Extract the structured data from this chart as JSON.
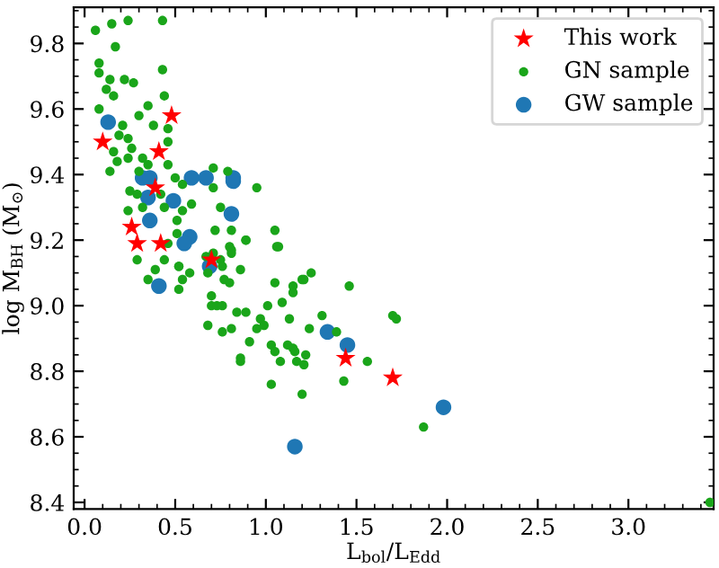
{
  "chart_data": {
    "type": "scatter",
    "xlabel": "L$_{bol}$/L$_{Edd}$",
    "ylabel": "log M$_{BH}$ (M$_{⊙}$)",
    "xlim": [
      -0.06,
      3.47
    ],
    "ylim": [
      8.38,
      9.91
    ],
    "xticks": [
      {
        "value": 0,
        "label": "0.0"
      },
      0.5,
      {
        "value": 1,
        "label": "1.0"
      },
      1.5,
      {
        "value": 2,
        "label": "2.0"
      },
      2.5,
      {
        "value": 3,
        "label": "3.0"
      }
    ],
    "yticks": [
      8.4,
      8.6,
      8.8,
      {
        "value": 9,
        "label": "9.0"
      },
      9.2,
      9.4,
      9.6,
      9.8
    ],
    "grid": false,
    "legend": "top right",
    "series": [
      {
        "name": "This work",
        "color": "#ff0000",
        "marker": "star",
        "x": [
          0.48,
          0.1,
          0.41,
          0.39,
          0.26,
          0.29,
          0.42,
          0.7,
          1.44,
          1.7
        ],
        "values": [
          9.58,
          9.5,
          9.47,
          9.36,
          9.24,
          9.19,
          9.19,
          9.14,
          8.84,
          8.78
        ]
      },
      {
        "name": "GN sample",
        "color": "#1aa51a",
        "marker": "circle",
        "x": [
          0.06,
          0.15,
          0.24,
          0.43,
          0.17,
          0.08,
          0.08,
          0.14,
          0.22,
          0.27,
          0.43,
          0.12,
          0.16,
          0.44,
          0.35,
          0.08,
          0.21,
          0.3,
          0.38,
          0.46,
          0.24,
          0.19,
          0.46,
          0.26,
          0.16,
          0.18,
          0.24,
          0.32,
          0.35,
          0.14,
          0.3,
          0.46,
          0.5,
          0.54,
          0.71,
          0.79,
          0.71,
          0.95,
          0.25,
          0.29,
          0.42,
          0.24,
          0.32,
          0.44,
          0.54,
          0.59,
          0.75,
          0.51,
          0.72,
          0.81,
          1.05,
          0.51,
          0.89,
          0.46,
          1.06,
          0.81,
          0.29,
          0.44,
          0.52,
          0.75,
          0.35,
          0.39,
          0.52,
          0.54,
          0.58,
          0.52,
          0.67,
          0.71,
          0.76,
          0.68,
          0.81,
          0.8,
          0.89,
          0.86,
          0.77,
          0.8,
          1.07,
          1.05,
          1.15,
          1.15,
          1.2,
          0.7,
          0.7,
          0.73,
          0.76,
          0.84,
          0.89,
          0.97,
          0.95,
          0.99,
          1.01,
          1.09,
          1.13,
          0.68,
          0.76,
          0.81,
          0.91,
          1.03,
          1.05,
          1.12,
          1.15,
          0.86,
          0.86,
          1.08,
          1.17,
          1.03,
          1.2,
          1.25,
          1.21,
          1.46,
          1.24,
          1.31,
          1.39,
          1.7,
          1.72,
          1.16,
          1.22,
          1.21,
          1.56,
          1.43,
          1.87,
          3.45
        ],
        "values": [
          9.84,
          9.86,
          9.87,
          9.87,
          9.79,
          9.74,
          9.71,
          9.69,
          9.69,
          9.68,
          9.72,
          9.66,
          9.64,
          9.64,
          9.61,
          9.6,
          9.55,
          9.58,
          9.55,
          9.54,
          9.51,
          9.52,
          9.5,
          9.48,
          9.47,
          9.44,
          9.45,
          9.45,
          9.43,
          9.41,
          9.41,
          9.43,
          9.39,
          9.37,
          9.42,
          9.41,
          9.36,
          9.36,
          9.35,
          9.34,
          9.34,
          9.29,
          9.3,
          9.3,
          9.29,
          9.31,
          9.3,
          9.26,
          9.23,
          9.23,
          9.23,
          9.22,
          9.2,
          9.19,
          9.18,
          9.17,
          9.14,
          9.14,
          9.12,
          9.14,
          9.08,
          9.11,
          9.12,
          9.08,
          9.1,
          9.05,
          9.15,
          9.16,
          9.12,
          9.1,
          9.16,
          9.18,
          9.2,
          9.11,
          9.08,
          9.07,
          9.18,
          9.07,
          9.04,
          9.06,
          9.08,
          9.03,
          9.0,
          9.0,
          9.0,
          8.98,
          8.98,
          8.96,
          8.93,
          8.94,
          9.0,
          9.01,
          8.96,
          8.94,
          8.92,
          8.93,
          8.89,
          8.88,
          8.86,
          8.88,
          8.87,
          8.84,
          8.83,
          8.83,
          8.83,
          8.76,
          8.73,
          9.1,
          9.08,
          9.06,
          8.93,
          8.97,
          8.92,
          8.97,
          8.96,
          8.86,
          8.85,
          8.82,
          8.83,
          8.77,
          8.63,
          8.4
        ]
      },
      {
        "name": "GW sample",
        "color": "#1f77b4",
        "marker": "circle",
        "x": [
          0.13,
          0.32,
          0.36,
          0.35,
          0.49,
          0.36,
          0.59,
          0.67,
          0.82,
          0.82,
          0.81,
          0.58,
          0.55,
          0.69,
          0.41,
          1.16,
          1.34,
          1.45,
          1.98
        ],
        "values": [
          9.56,
          9.39,
          9.39,
          9.33,
          9.32,
          9.26,
          9.39,
          9.39,
          9.38,
          9.39,
          9.28,
          9.21,
          9.19,
          9.12,
          9.06,
          8.57,
          8.92,
          8.88,
          8.69
        ]
      }
    ]
  }
}
